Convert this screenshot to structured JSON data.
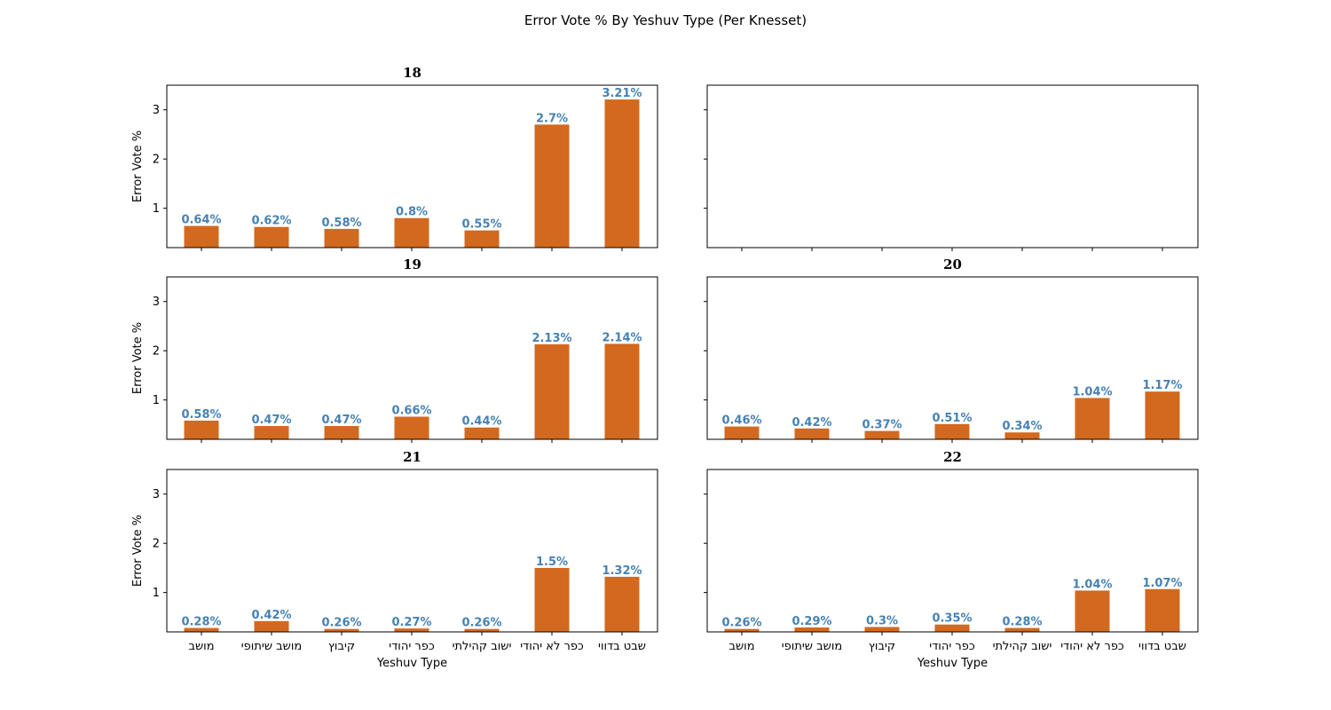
{
  "chart_data": {
    "type": "bar",
    "title": "Error Vote % By Yeshuv Type (Per Knesset)",
    "categories": [
      "מושב",
      "מושב שיתופי",
      "קיבוץ",
      "כפר יהודי",
      "ישוב קהילתי",
      "כפר לא יהודי",
      "שבט בדווי"
    ],
    "xlabel": "Yeshuv Type",
    "ylabel": "Error Vote %",
    "ylim": [
      0.2,
      3.5
    ],
    "yticks": [
      "1",
      "2",
      "3"
    ],
    "bar_color": "#d2691e",
    "label_color": "#4682b4",
    "grid": false,
    "layout": "3 rows x 2 columns, shared axes",
    "panels": [
      {
        "title": "18",
        "values": [
          0.64,
          0.62,
          0.58,
          0.8,
          0.55,
          2.7,
          3.21
        ],
        "labels": [
          "0.64%",
          "0.62%",
          "0.58%",
          "0.8%",
          "0.55%",
          "2.7%",
          "3.21%"
        ]
      },
      {
        "title": "",
        "values": [],
        "labels": []
      },
      {
        "title": "19",
        "values": [
          0.58,
          0.47,
          0.47,
          0.66,
          0.44,
          2.13,
          2.14
        ],
        "labels": [
          "0.58%",
          "0.47%",
          "0.47%",
          "0.66%",
          "0.44%",
          "2.13%",
          "2.14%"
        ]
      },
      {
        "title": "20",
        "values": [
          0.46,
          0.42,
          0.37,
          0.51,
          0.34,
          1.04,
          1.17
        ],
        "labels": [
          "0.46%",
          "0.42%",
          "0.37%",
          "0.51%",
          "0.34%",
          "1.04%",
          "1.17%"
        ]
      },
      {
        "title": "21",
        "values": [
          0.28,
          0.42,
          0.26,
          0.27,
          0.26,
          1.5,
          1.32
        ],
        "labels": [
          "0.28%",
          "0.42%",
          "0.26%",
          "0.27%",
          "0.26%",
          "1.5%",
          "1.32%"
        ]
      },
      {
        "title": "22",
        "values": [
          0.26,
          0.29,
          0.3,
          0.35,
          0.28,
          1.04,
          1.07
        ],
        "labels": [
          "0.26%",
          "0.29%",
          "0.3%",
          "0.35%",
          "0.28%",
          "1.04%",
          "1.07%"
        ]
      }
    ]
  }
}
